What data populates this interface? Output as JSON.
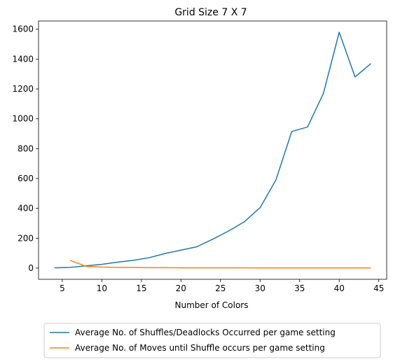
{
  "chart_data": {
    "type": "line",
    "title": "Grid Size 7 X 7",
    "xlabel": "Number of Colors",
    "ylabel": "",
    "xlim": [
      2.0,
      46.0
    ],
    "ylim": [
      -75,
      1655
    ],
    "xticks": [
      5,
      10,
      15,
      20,
      25,
      30,
      35,
      40,
      45
    ],
    "yticks": [
      0,
      200,
      400,
      600,
      800,
      1000,
      1200,
      1400,
      1600
    ],
    "grid": false,
    "legend_position": "below plot",
    "series": [
      {
        "name": "Average No. of Shuffles/Deadlocks Occurred per game setting",
        "color": "#1f77b4",
        "x": [
          4,
          6,
          8,
          10,
          12,
          14,
          16,
          18,
          20,
          22,
          24,
          26,
          28,
          30,
          32,
          34,
          36,
          38,
          40,
          42,
          44
        ],
        "y": [
          2,
          5,
          15,
          25,
          40,
          52,
          70,
          98,
          120,
          143,
          193,
          248,
          310,
          405,
          590,
          915,
          945,
          1170,
          1580,
          1280,
          1370
        ]
      },
      {
        "name": "Average No. of Moves until Shuffle occurs per game setting",
        "color": "#ff7f0e",
        "x": [
          6,
          8,
          10,
          12,
          14,
          16,
          18,
          20,
          22,
          24,
          26,
          28,
          30,
          32,
          34,
          36,
          38,
          40,
          42,
          44
        ],
        "y": [
          52,
          12,
          7,
          5,
          4,
          3,
          3,
          2,
          2,
          2,
          2,
          2,
          1,
          1,
          1,
          1,
          1,
          1,
          1,
          1
        ]
      }
    ]
  }
}
